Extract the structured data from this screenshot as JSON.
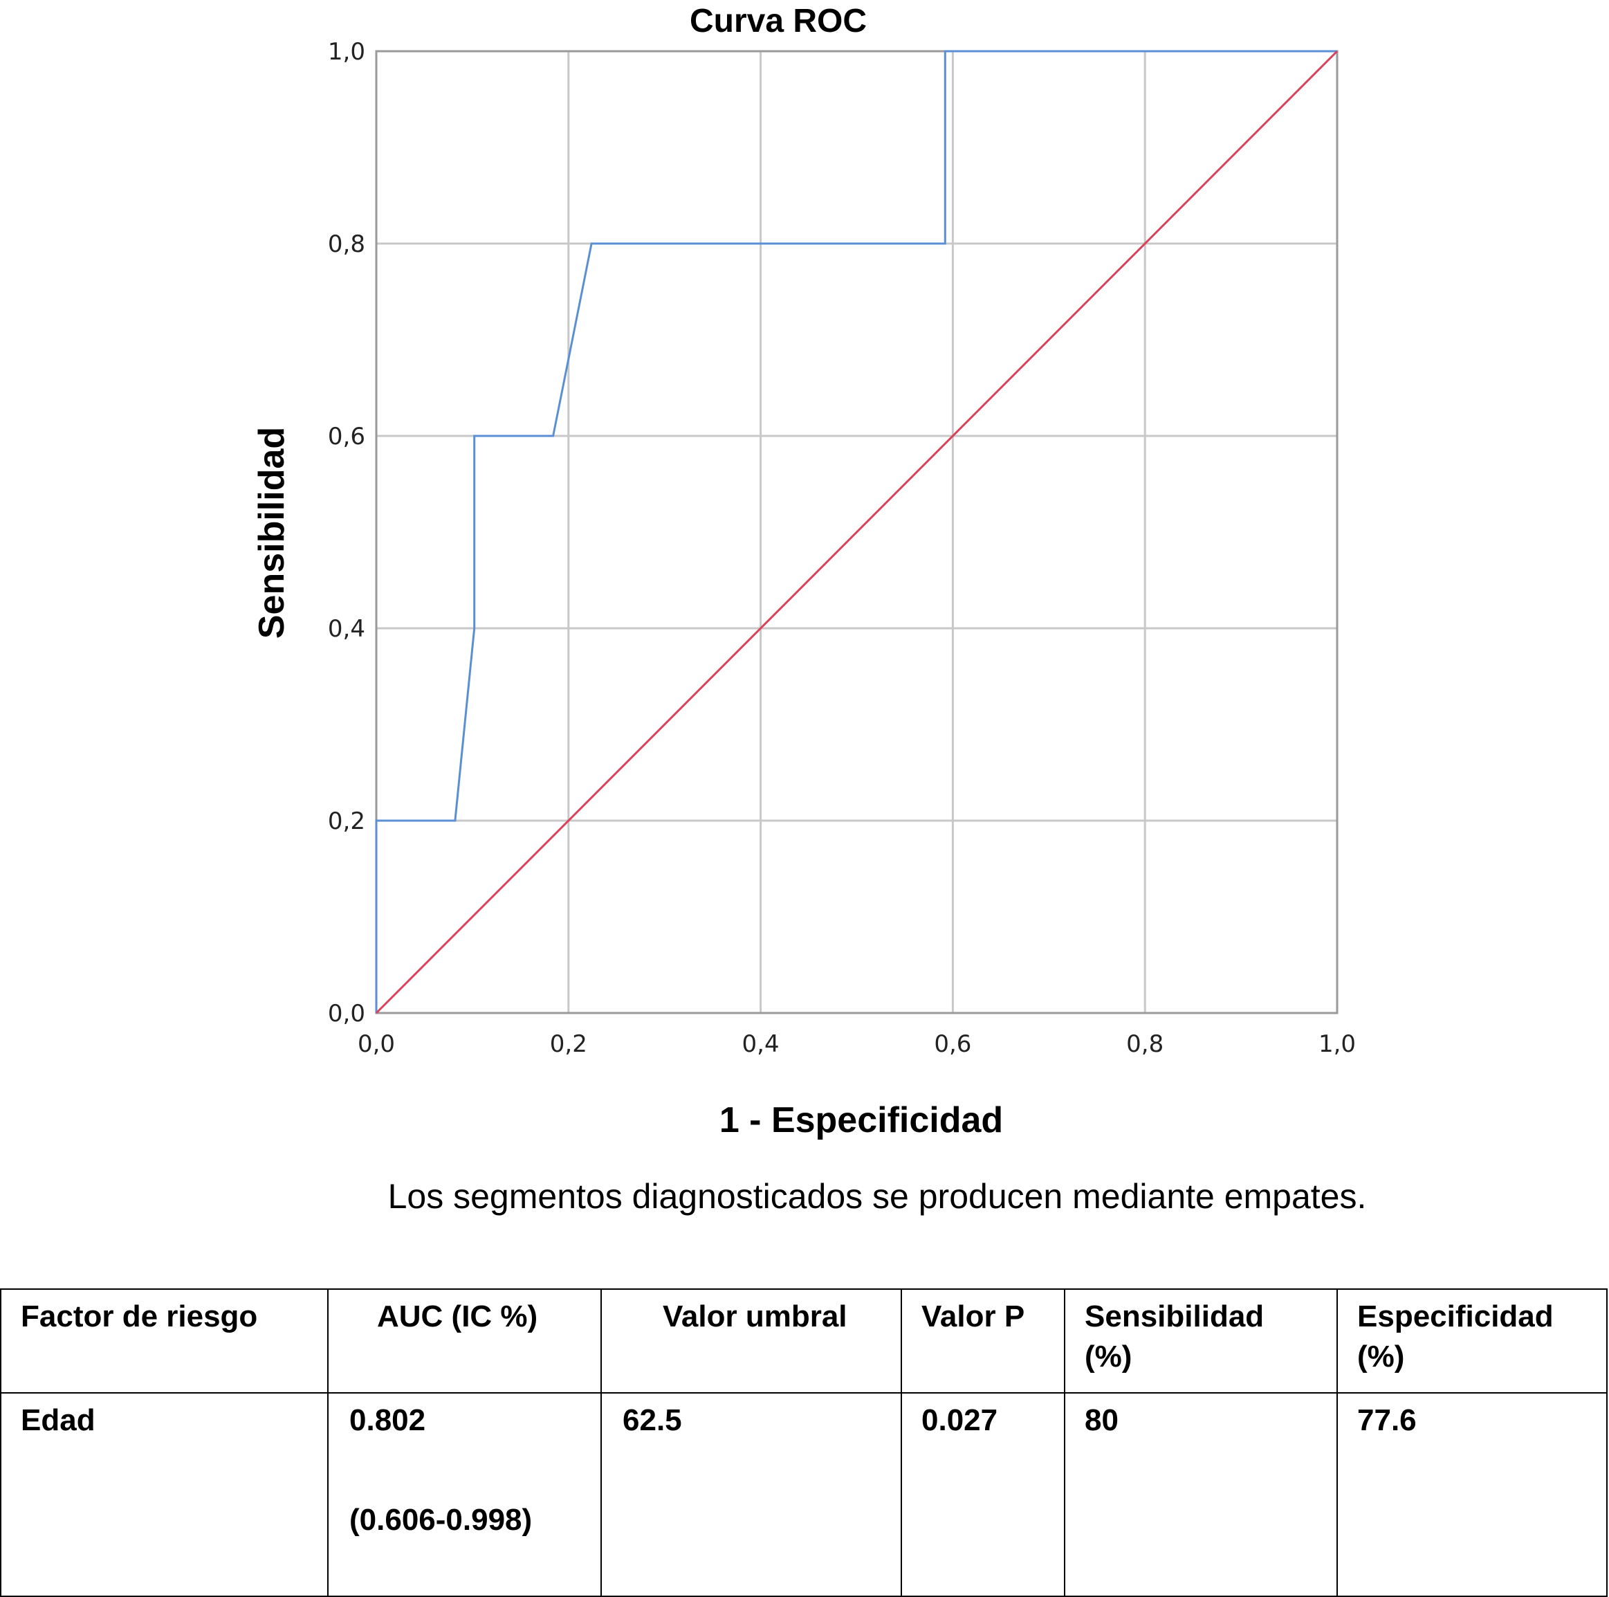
{
  "chart_data": {
    "type": "line",
    "title": "Curva ROC",
    "xlabel": "1 - Especificidad",
    "ylabel": "Sensibilidad",
    "xlim": [
      0,
      1
    ],
    "ylim": [
      0,
      1
    ],
    "x_ticks": [
      "0,0",
      "0,2",
      "0,4",
      "0,6",
      "0,8",
      "1,0"
    ],
    "y_ticks": [
      "0,0",
      "0,2",
      "0,4",
      "0,6",
      "0,8",
      "1,0"
    ],
    "grid": true,
    "series": [
      {
        "color": "#5b8fd4",
        "points": [
          [
            0,
            0
          ],
          [
            0,
            0.2
          ],
          [
            0.082,
            0.2
          ],
          [
            0.102,
            0.4
          ],
          [
            0.102,
            0.6
          ],
          [
            0.184,
            0.6
          ],
          [
            0.204,
            0.7
          ],
          [
            0.224,
            0.8
          ],
          [
            0.592,
            0.8
          ],
          [
            0.592,
            1
          ],
          [
            1,
            1
          ]
        ]
      },
      {
        "color": "#d9425a",
        "points": [
          [
            0,
            0
          ],
          [
            1,
            1
          ]
        ]
      }
    ]
  },
  "footnote": "Los segmentos diagnosticados se producen mediante empates.",
  "table": {
    "headers": [
      "Factor de riesgo",
      "AUC (IC %)",
      "Valor umbral",
      "Valor P",
      "Sensibilidad (%)",
      "Especificidad (%)"
    ],
    "row": {
      "factor": "Edad",
      "auc": "0.802",
      "ic": "(0.606-0.998)",
      "umbral": "62.5",
      "p": "0.027",
      "sensibilidad": "80",
      "especificidad": "77.6"
    }
  }
}
